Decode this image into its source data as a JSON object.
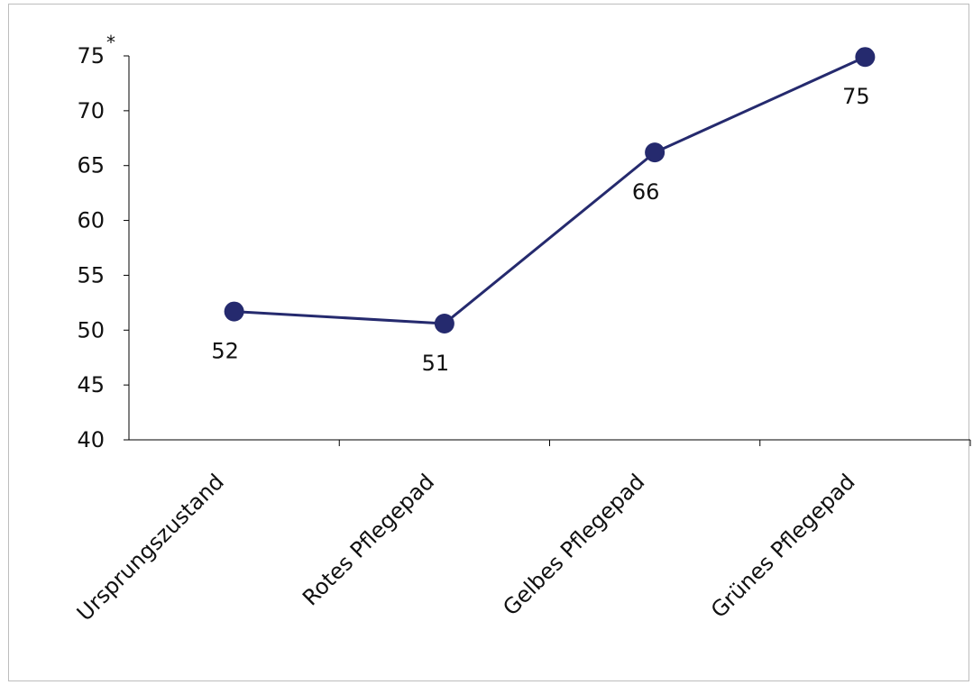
{
  "chart_data": {
    "type": "line",
    "categories": [
      "Ursprungszustand",
      "Rotes Pflegepad",
      "Gelbes Pflegepad",
      "Grünes Pflegepad"
    ],
    "series": [
      {
        "values": [
          51.7,
          50.6,
          66.2,
          74.9
        ],
        "data_labels": [
          "52",
          "51",
          "66",
          "75"
        ]
      }
    ],
    "title": "",
    "xlabel": "",
    "ylabel": "",
    "ylim": [
      40,
      75
    ],
    "yticks": [
      40,
      45,
      50,
      55,
      60,
      65,
      70,
      75
    ],
    "ytick_labels": [
      "40",
      "45",
      "50",
      "55",
      "60",
      "65",
      "70",
      "75"
    ],
    "y_max_annotation": "*",
    "data_label_placement": [
      "below",
      "below",
      "below",
      "below"
    ],
    "grid": false,
    "legend": "none",
    "colors": {
      "line": "#252a6e",
      "marker": "#252a6e",
      "axis": "#000000",
      "text": "#111111"
    }
  }
}
